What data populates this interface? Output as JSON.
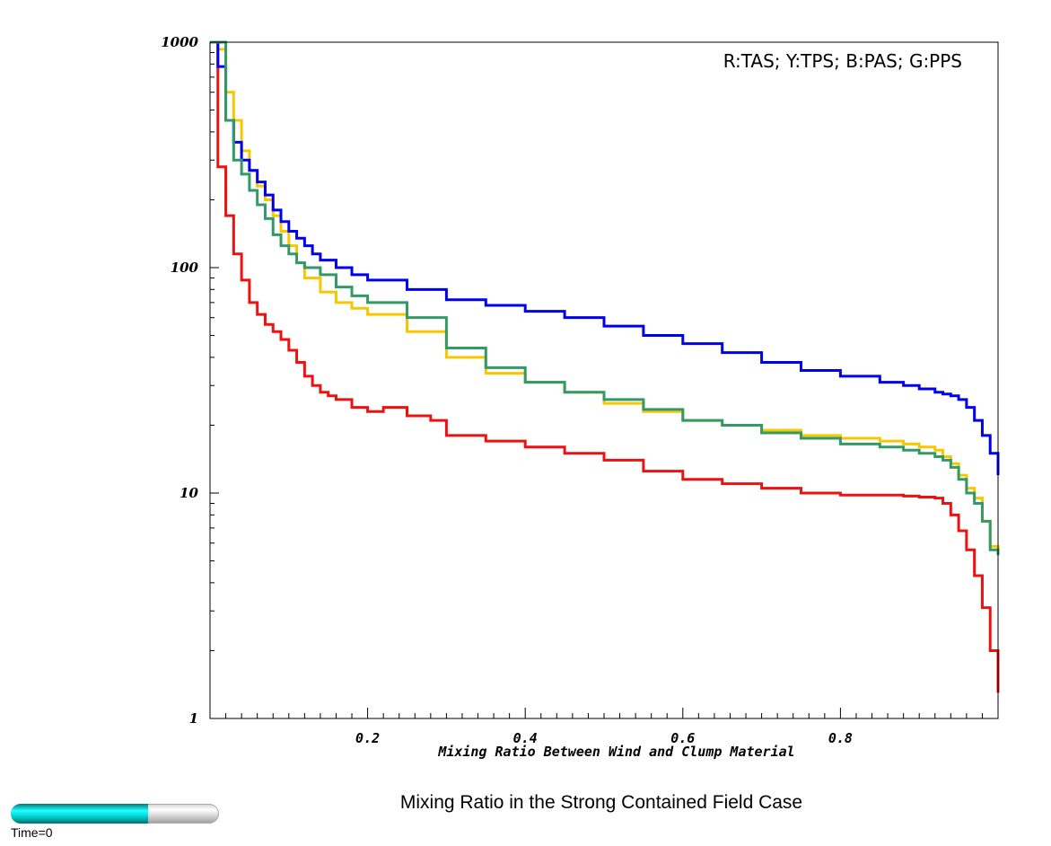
{
  "title": "Mixing Ratio in the Strong Contained Field Case",
  "time_slider": {
    "label": "Time=0",
    "progress": 0.66
  },
  "chart_data": {
    "type": "line",
    "step": true,
    "xlabel": "Mixing Ratio Between Wind and Clump Material",
    "ylabel": "",
    "xlim": [
      0.0,
      1.0
    ],
    "ylim": [
      1,
      1000
    ],
    "yscale": "log",
    "grid": false,
    "xticks": [
      0.2,
      0.4,
      0.6,
      0.8
    ],
    "xtick_labels": [
      "0.2",
      "0.4",
      "0.6",
      "0.8"
    ],
    "yticks": [
      1,
      10,
      100,
      1000
    ],
    "ytick_labels": [
      "1",
      "10",
      "100",
      "1000"
    ],
    "legend_text": "R:TAS; Y:TPS; B:PAS; G:PPS",
    "legend_position": "top-right",
    "x": [
      0.0,
      0.1,
      0.2,
      0.3,
      0.4,
      0.5,
      0.6,
      0.7,
      0.8,
      0.9,
      0.95,
      0.98,
      0.99,
      1.0
    ],
    "series": [
      {
        "id": "red",
        "color": "#ee1111",
        "x": [
          0.0,
          0.01,
          0.02,
          0.03,
          0.04,
          0.05,
          0.06,
          0.07,
          0.08,
          0.09,
          0.1,
          0.11,
          0.12,
          0.13,
          0.14,
          0.15,
          0.16,
          0.18,
          0.2,
          0.22,
          0.25,
          0.28,
          0.3,
          0.35,
          0.4,
          0.45,
          0.5,
          0.55,
          0.6,
          0.65,
          0.7,
          0.75,
          0.8,
          0.85,
          0.88,
          0.9,
          0.92,
          0.93,
          0.94,
          0.95,
          0.96,
          0.97,
          0.98,
          0.99,
          1.0
        ],
        "y": [
          1000,
          280,
          170,
          115,
          88,
          70,
          62,
          56,
          52,
          48,
          43,
          38,
          33,
          30,
          28,
          27,
          26,
          24,
          23,
          24,
          22,
          21,
          18,
          17,
          16,
          15,
          14,
          12.5,
          11.5,
          11,
          10.5,
          10,
          9.8,
          9.8,
          9.7,
          9.6,
          9.5,
          9.0,
          8.0,
          6.8,
          5.6,
          4.3,
          3.1,
          2.0,
          1.3
        ]
      },
      {
        "id": "yellow",
        "color": "#f5c800",
        "x": [
          0.0,
          0.01,
          0.02,
          0.03,
          0.04,
          0.05,
          0.06,
          0.07,
          0.08,
          0.09,
          0.1,
          0.11,
          0.12,
          0.14,
          0.16,
          0.18,
          0.2,
          0.25,
          0.3,
          0.35,
          0.4,
          0.45,
          0.5,
          0.55,
          0.6,
          0.65,
          0.7,
          0.75,
          0.8,
          0.85,
          0.88,
          0.9,
          0.92,
          0.93,
          0.94,
          0.95,
          0.96,
          0.97,
          0.98,
          0.99,
          1.0
        ],
        "y": [
          1000,
          930,
          600,
          450,
          330,
          270,
          230,
          200,
          170,
          145,
          125,
          105,
          90,
          78,
          70,
          66,
          62,
          52,
          40,
          34,
          31,
          28,
          25,
          23,
          21,
          20,
          19,
          18,
          17.5,
          17,
          16.5,
          16,
          15.5,
          14.5,
          13.5,
          12,
          10.5,
          9.5,
          7.5,
          5.8,
          5.5
        ]
      },
      {
        "id": "blue",
        "color": "#0000ee",
        "x": [
          0.0,
          0.01,
          0.02,
          0.03,
          0.04,
          0.05,
          0.06,
          0.07,
          0.08,
          0.09,
          0.1,
          0.11,
          0.12,
          0.13,
          0.14,
          0.16,
          0.18,
          0.2,
          0.25,
          0.3,
          0.35,
          0.4,
          0.45,
          0.5,
          0.55,
          0.6,
          0.65,
          0.7,
          0.75,
          0.8,
          0.85,
          0.88,
          0.9,
          0.92,
          0.93,
          0.94,
          0.95,
          0.96,
          0.97,
          0.98,
          0.99,
          1.0
        ],
        "y": [
          1000,
          780,
          450,
          360,
          300,
          270,
          240,
          210,
          180,
          160,
          145,
          135,
          125,
          115,
          108,
          100,
          93,
          88,
          80,
          72,
          68,
          64,
          60,
          55,
          50,
          46,
          42,
          38,
          35,
          33,
          31,
          30,
          29,
          28,
          27.5,
          27,
          26,
          24,
          21,
          18,
          15,
          12
        ]
      },
      {
        "id": "green",
        "color": "#339966",
        "x": [
          0.0,
          0.01,
          0.02,
          0.03,
          0.04,
          0.05,
          0.06,
          0.07,
          0.08,
          0.09,
          0.1,
          0.11,
          0.12,
          0.14,
          0.16,
          0.18,
          0.2,
          0.25,
          0.3,
          0.35,
          0.4,
          0.45,
          0.5,
          0.55,
          0.6,
          0.65,
          0.7,
          0.75,
          0.8,
          0.85,
          0.88,
          0.9,
          0.92,
          0.93,
          0.94,
          0.95,
          0.96,
          0.97,
          0.98,
          0.99,
          1.0
        ],
        "y": [
          1000,
          1000,
          450,
          300,
          260,
          220,
          190,
          165,
          140,
          125,
          115,
          105,
          100,
          93,
          82,
          75,
          70,
          60,
          44,
          36,
          31,
          28,
          26,
          23.5,
          21,
          20,
          18.5,
          17.5,
          16.5,
          16,
          15.5,
          15,
          14.5,
          14,
          13,
          11.5,
          10,
          9.0,
          7.5,
          5.6,
          5.3
        ]
      }
    ]
  }
}
